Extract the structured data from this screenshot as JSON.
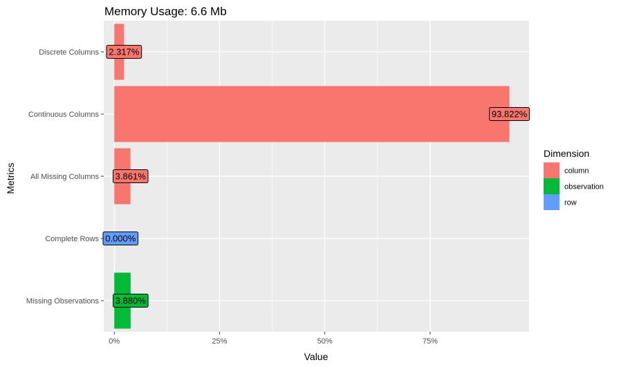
{
  "chart_data": {
    "type": "bar",
    "orientation": "horizontal",
    "title": "Memory Usage: 6.6 Mb",
    "xlabel": "Value",
    "ylabel": "Metrics",
    "xlim": [
      -0.025,
      0.985
    ],
    "x_ticks": [
      0,
      0.25,
      0.5,
      0.75
    ],
    "x_tick_labels": [
      "0%",
      "25%",
      "50%",
      "75%"
    ],
    "grid": true,
    "legend": {
      "title": "Dimension",
      "position": "right",
      "entries": [
        {
          "name": "column",
          "color": "#F8766D"
        },
        {
          "name": "observation",
          "color": "#00BA38"
        },
        {
          "name": "row",
          "color": "#619CFF"
        }
      ]
    },
    "categories": [
      "Discrete Columns",
      "Continuous Columns",
      "All Missing Columns",
      "Complete Rows",
      "Missing Observations"
    ],
    "bars": [
      {
        "category": "Discrete Columns",
        "value": 0.02317,
        "label": "2.317%",
        "dimension": "column"
      },
      {
        "category": "Continuous Columns",
        "value": 0.93822,
        "label": "93.822%",
        "dimension": "column"
      },
      {
        "category": "All Missing Columns",
        "value": 0.03861,
        "label": "3.861%",
        "dimension": "column"
      },
      {
        "category": "Complete Rows",
        "value": 0.0,
        "label": "0.000%",
        "dimension": "row"
      },
      {
        "category": "Missing Observations",
        "value": 0.0388,
        "label": "3.880%",
        "dimension": "observation"
      }
    ]
  }
}
